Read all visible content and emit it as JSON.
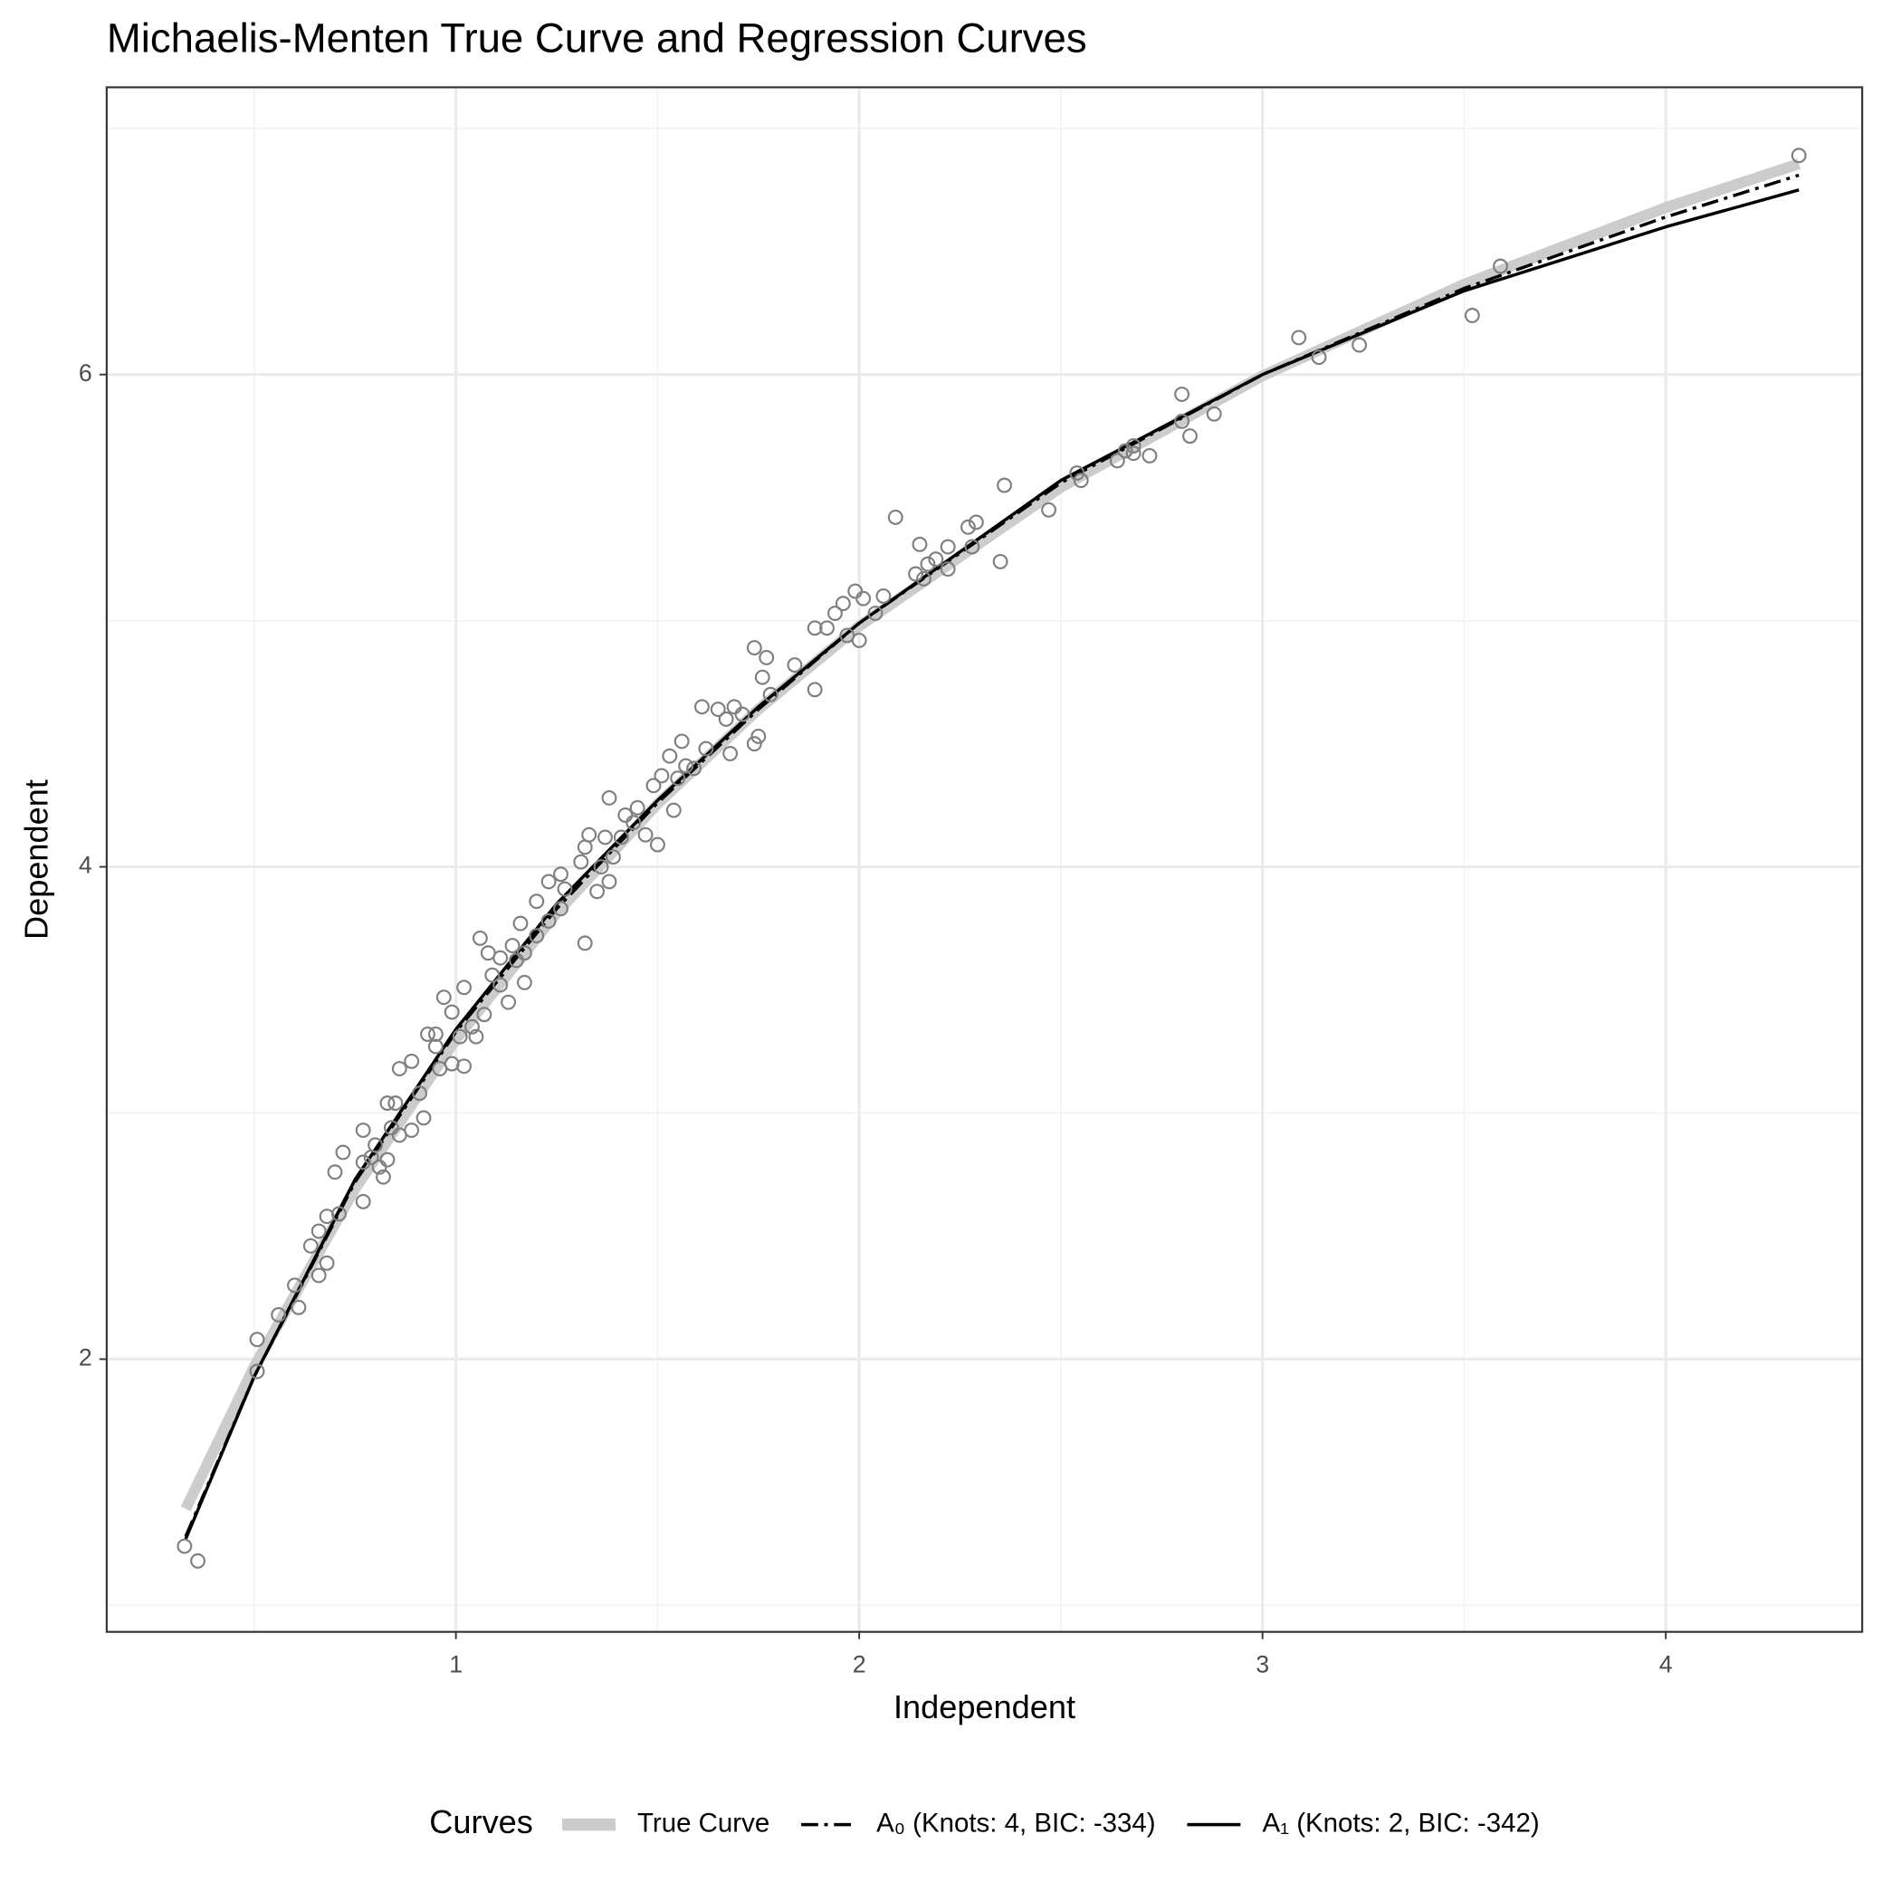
{
  "chart_data": {
    "type": "scatter",
    "title": "Michaelis-Menten True Curve and Regression Curves",
    "x_label": "Independent",
    "y_label": "Dependent",
    "xlim": [
      0.134,
      4.487
    ],
    "ylim": [
      0.892,
      7.167
    ],
    "xticks": [
      1,
      2,
      3,
      4
    ],
    "yticks": [
      2,
      4,
      6
    ],
    "xminor": [
      0.5,
      1.5,
      2.5,
      3.5,
      4.5
    ],
    "yminor": [
      1,
      3,
      5,
      7
    ],
    "grid": true,
    "legend": {
      "title": "Curves",
      "position": "bottom"
    },
    "points": {
      "color": "#7f7f7f",
      "x": [
        0.327,
        0.36,
        0.507,
        0.507,
        0.56,
        0.6,
        0.61,
        0.64,
        0.66,
        0.66,
        0.68,
        0.68,
        0.7,
        0.71,
        0.72,
        0.77,
        0.77,
        0.77,
        0.79,
        0.8,
        0.81,
        0.82,
        0.83,
        0.83,
        0.84,
        0.85,
        0.86,
        0.86,
        0.89,
        0.89,
        0.91,
        0.92,
        0.93,
        0.95,
        0.95,
        0.96,
        0.97,
        0.99,
        0.99,
        1.01,
        1.02,
        1.02,
        1.04,
        1.05,
        1.06,
        1.07,
        1.08,
        1.09,
        1.11,
        1.11,
        1.13,
        1.14,
        1.15,
        1.16,
        1.17,
        1.17,
        1.2,
        1.2,
        1.23,
        1.23,
        1.26,
        1.26,
        1.27,
        1.31,
        1.32,
        1.32,
        1.33,
        1.35,
        1.36,
        1.37,
        1.38,
        1.38,
        1.39,
        1.41,
        1.42,
        1.44,
        1.45,
        1.47,
        1.49,
        1.5,
        1.51,
        1.53,
        1.54,
        1.55,
        1.56,
        1.57,
        1.59,
        1.61,
        1.62,
        1.65,
        1.67,
        1.68,
        1.69,
        1.71,
        1.74,
        1.74,
        1.75,
        1.76,
        1.77,
        1.78,
        1.84,
        1.89,
        1.89,
        1.92,
        1.94,
        1.96,
        1.97,
        1.99,
        2.0,
        2.01,
        2.04,
        2.06,
        2.09,
        2.14,
        2.15,
        2.16,
        2.17,
        2.19,
        2.22,
        2.22,
        2.27,
        2.28,
        2.29,
        2.35,
        2.36,
        2.47,
        2.54,
        2.55,
        2.64,
        2.66,
        2.68,
        2.68,
        2.72,
        2.8,
        2.8,
        2.82,
        2.88,
        3.09,
        3.14,
        3.24,
        3.52,
        3.59,
        4.33
      ],
      "y": [
        1.24,
        1.18,
        2.08,
        1.95,
        2.18,
        2.3,
        2.21,
        2.46,
        2.34,
        2.52,
        2.58,
        2.39,
        2.76,
        2.59,
        2.84,
        2.93,
        2.64,
        2.8,
        2.82,
        2.87,
        2.78,
        2.74,
        3.04,
        2.81,
        2.94,
        3.04,
        2.91,
        3.18,
        3.21,
        2.93,
        3.08,
        2.98,
        3.32,
        3.32,
        3.27,
        3.18,
        3.47,
        3.2,
        3.41,
        3.31,
        3.19,
        3.51,
        3.35,
        3.31,
        3.71,
        3.4,
        3.65,
        3.56,
        3.52,
        3.63,
        3.45,
        3.68,
        3.62,
        3.77,
        3.53,
        3.65,
        3.86,
        3.72,
        3.94,
        3.78,
        3.97,
        3.83,
        3.91,
        4.02,
        3.69,
        4.08,
        4.13,
        3.9,
        4.0,
        4.12,
        4.28,
        3.94,
        4.04,
        4.12,
        4.21,
        4.18,
        4.24,
        4.13,
        4.33,
        4.09,
        4.37,
        4.45,
        4.23,
        4.36,
        4.51,
        4.41,
        4.4,
        4.65,
        4.48,
        4.64,
        4.6,
        4.46,
        4.65,
        4.62,
        4.5,
        4.89,
        4.53,
        4.77,
        4.85,
        4.7,
        4.82,
        4.72,
        4.97,
        4.97,
        5.03,
        5.07,
        4.94,
        5.12,
        4.92,
        5.09,
        5.03,
        5.1,
        5.42,
        5.19,
        5.31,
        5.17,
        5.23,
        5.25,
        5.21,
        5.3,
        5.38,
        5.3,
        5.4,
        5.24,
        5.55,
        5.45,
        5.6,
        5.57,
        5.65,
        5.69,
        5.71,
        5.68,
        5.67,
        5.92,
        5.81,
        5.75,
        5.84,
        6.15,
        6.07,
        6.12,
        6.24,
        6.44,
        6.89
      ]
    },
    "x": [
      0.33,
      0.5,
      0.75,
      1,
      1.25,
      1.5,
      1.75,
      2,
      2.5,
      3,
      3.5,
      4,
      4.33
    ],
    "series": [
      {
        "name": "True Curve",
        "color": "#cccccc",
        "linestyle": "solid",
        "emphasis": "thick",
        "values": [
          1.392,
          1.97,
          2.693,
          3.299,
          3.813,
          4.256,
          4.64,
          4.978,
          5.542,
          5.995,
          6.367,
          6.678,
          6.856
        ]
      },
      {
        "name": "A₀ (Knots: 4, BIC: -334)",
        "color": "#000000",
        "linestyle": "dashdot",
        "emphasis": "thin",
        "values": [
          1.28,
          1.93,
          2.72,
          3.33,
          3.83,
          4.26,
          4.64,
          4.99,
          5.56,
          6.0,
          6.35,
          6.64,
          6.81
        ]
      },
      {
        "name": "A₁ (Knots: 2, BIC: -342)",
        "color": "#000000",
        "linestyle": "solid",
        "emphasis": "thin",
        "values": [
          1.27,
          1.93,
          2.73,
          3.34,
          3.85,
          4.27,
          4.65,
          4.99,
          5.57,
          6.0,
          6.34,
          6.6,
          6.75
        ]
      }
    ]
  }
}
